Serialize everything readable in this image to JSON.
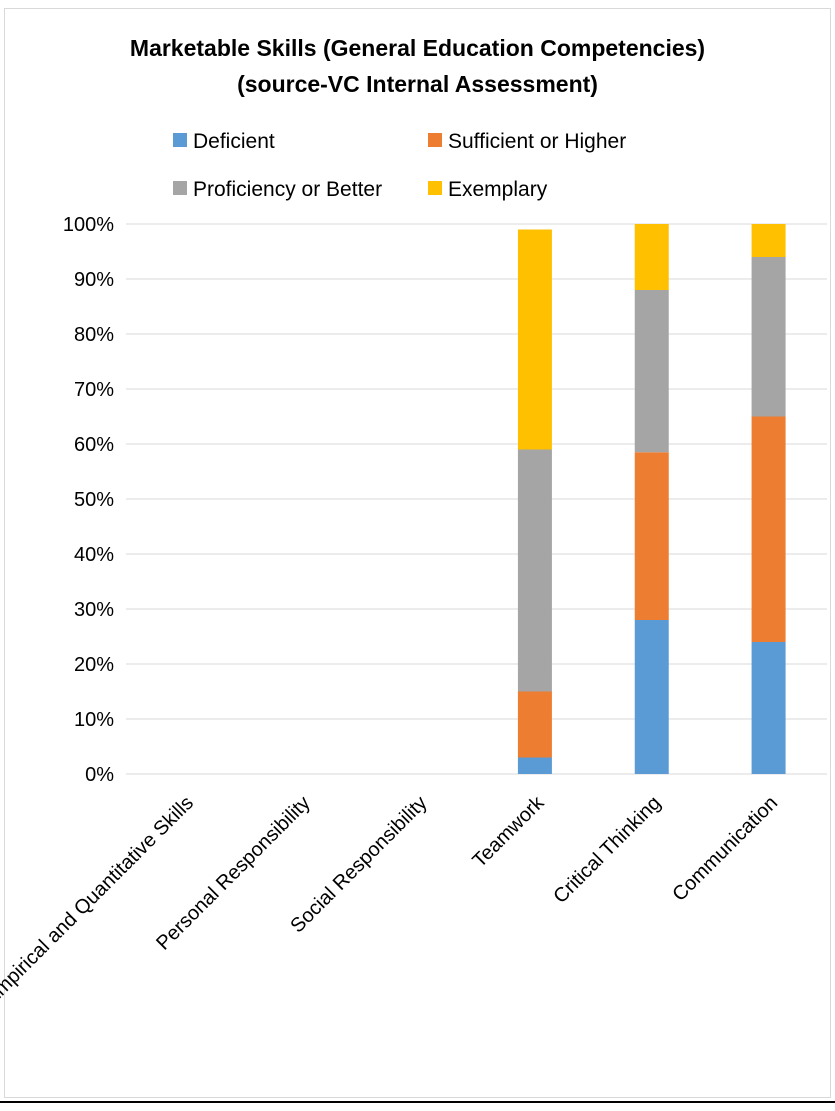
{
  "chart_data": {
    "type": "bar",
    "stacked": true,
    "title_line1": "Marketable Skills (General Education Competencies)",
    "title_line2": "(source-VC Internal Assessment)",
    "categories": [
      "Empirical and Quantitative Skills",
      "Personal Responsibility",
      "Social Responsibility",
      "Teamwork",
      "Critical Thinking",
      "Communication"
    ],
    "series": [
      {
        "name": "Deficient",
        "color": "#5b9bd5",
        "values": [
          0,
          0,
          0,
          3,
          28,
          24
        ]
      },
      {
        "name": "Sufficient or Higher",
        "color": "#ed7d31",
        "values": [
          0,
          0,
          0,
          12,
          30.5,
          41
        ]
      },
      {
        "name": "Proficiency or Better",
        "color": "#a5a5a5",
        "values": [
          0,
          0,
          0,
          44,
          29.5,
          29
        ]
      },
      {
        "name": "Exemplary",
        "color": "#ffc000",
        "values": [
          0,
          0,
          0,
          40,
          12,
          6
        ]
      }
    ],
    "y_ticks": [
      "0%",
      "10%",
      "20%",
      "30%",
      "40%",
      "50%",
      "60%",
      "70%",
      "80%",
      "90%",
      "100%"
    ],
    "ylim": [
      0,
      100
    ],
    "legend_position": "top",
    "grid": true
  }
}
